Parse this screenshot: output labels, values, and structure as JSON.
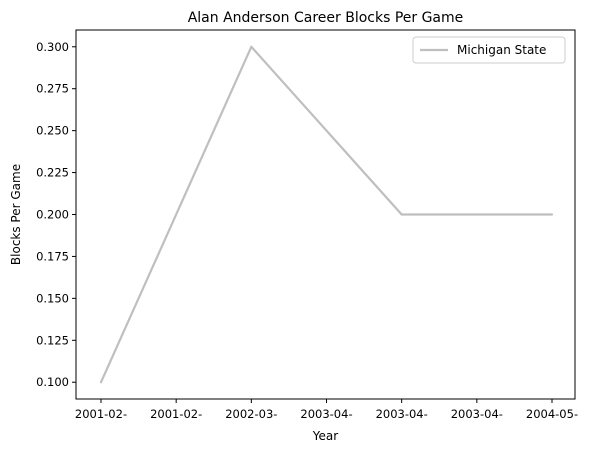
{
  "chart_data": {
    "type": "line",
    "title": "Alan Anderson  Career Blocks Per Game",
    "xlabel": "Year",
    "ylabel": "Blocks Per Game",
    "x_tick_labels": [
      "2001-02-",
      "2001-02-",
      "2002-03-",
      "2003-04-",
      "2003-04-",
      "2003-04-",
      "2004-05-"
    ],
    "y_ticks": [
      0.1,
      0.125,
      0.15,
      0.175,
      0.2,
      0.225,
      0.25,
      0.275,
      0.3
    ],
    "y_tick_labels": [
      "0.100",
      "0.125",
      "0.150",
      "0.175",
      "0.200",
      "0.225",
      "0.250",
      "0.275",
      "0.300"
    ],
    "ylim": [
      0.09,
      0.31
    ],
    "categories": [
      "2001-02",
      "2002-03",
      "2003-04",
      "2004-05"
    ],
    "series": [
      {
        "name": "Michigan State",
        "color": "#bfbfbf",
        "values": [
          0.1,
          0.3,
          0.2,
          0.2
        ]
      }
    ],
    "legend_position": "top-right",
    "grid": false
  }
}
